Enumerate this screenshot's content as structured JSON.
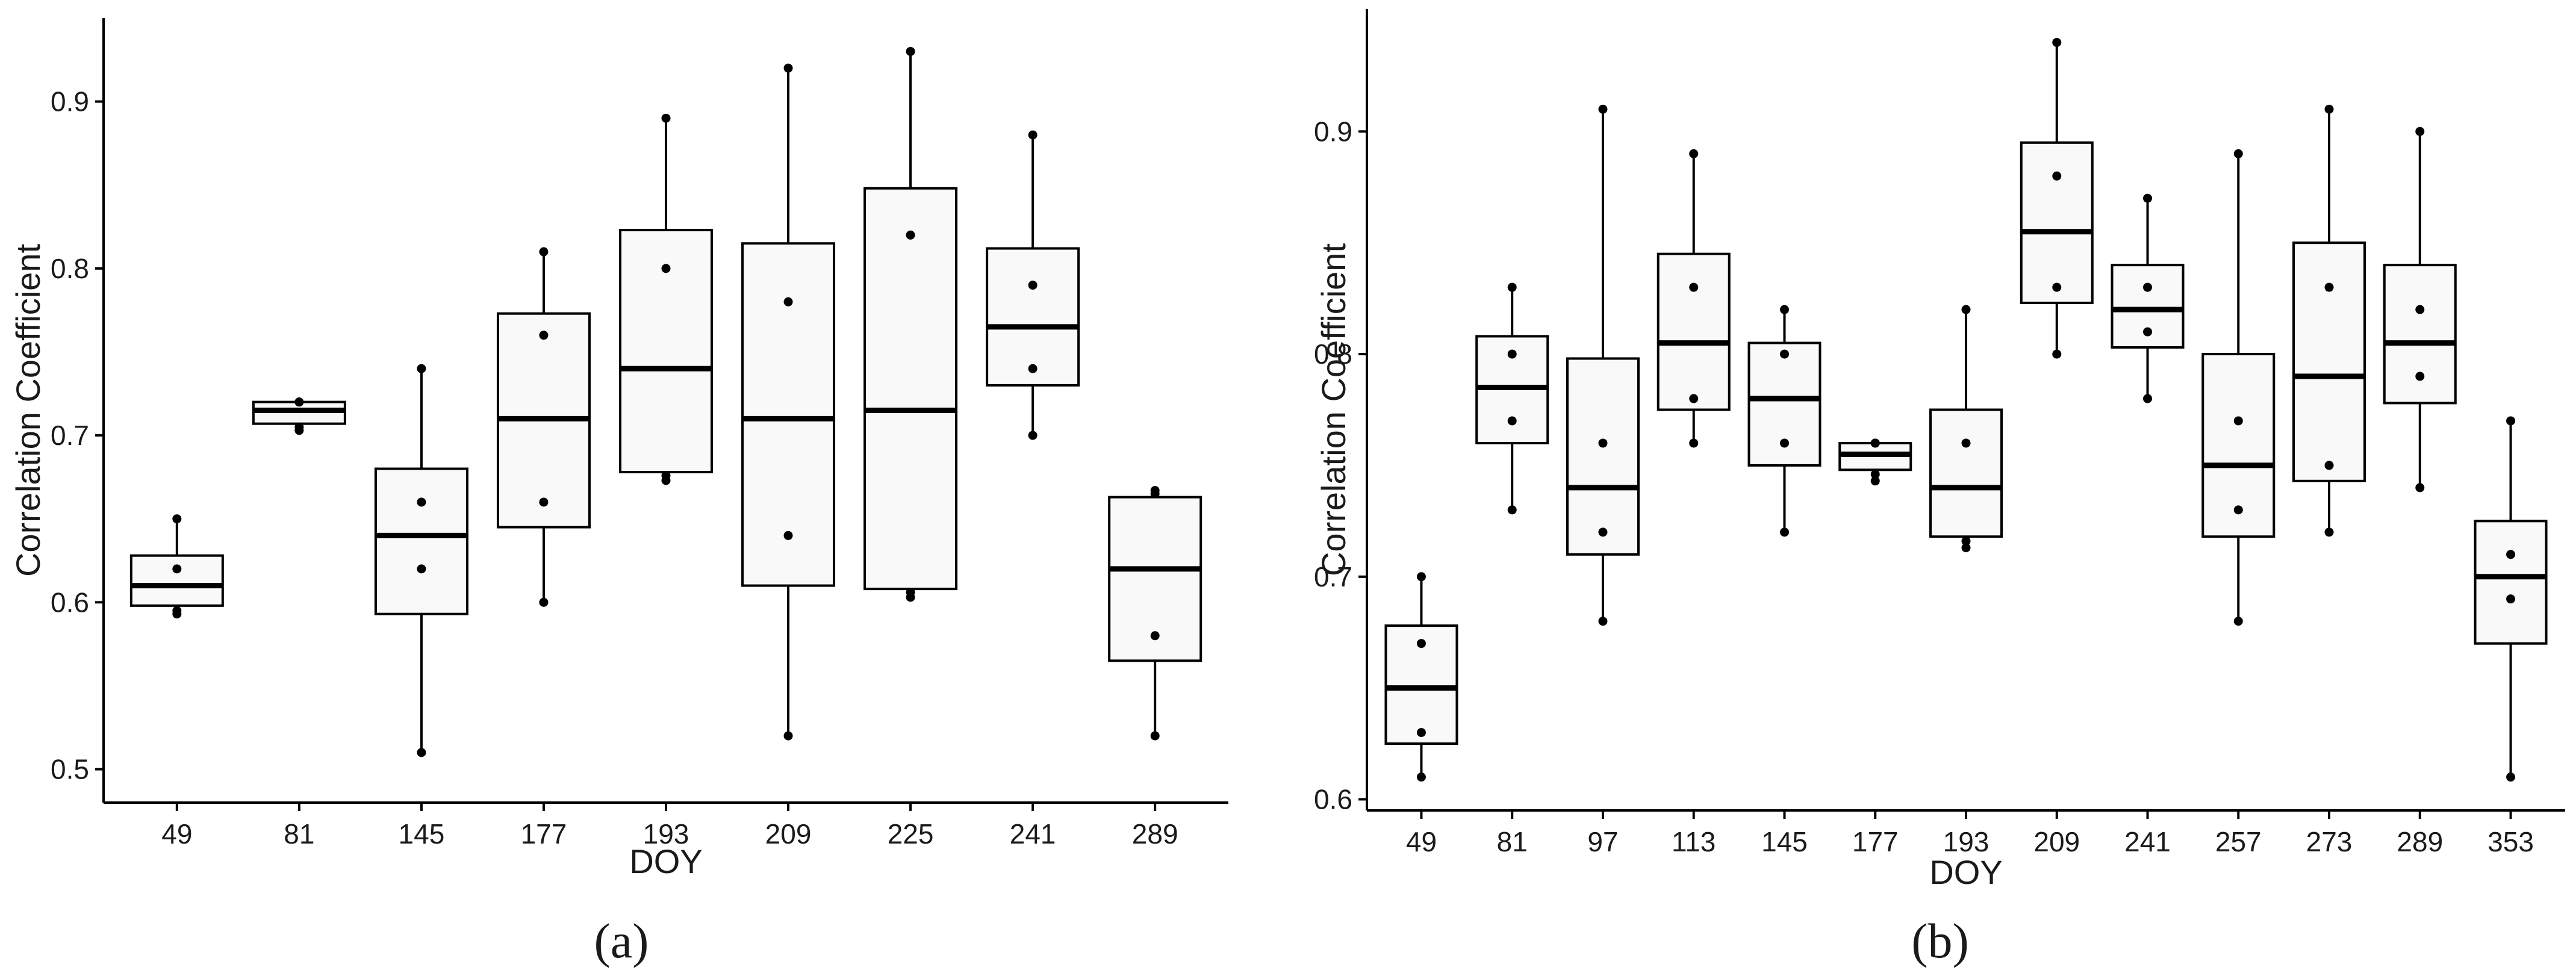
{
  "colors": {
    "box_fill": "#f9f9f9",
    "stroke": "#000000",
    "text": "#1a1a1a",
    "background": "#ffffff"
  },
  "chart_data": [
    {
      "type": "boxplot",
      "panel_label": "(a)",
      "xlabel": "DOY",
      "ylabel": "Correlation Coefficient",
      "ylim": [
        0.48,
        0.95
      ],
      "yticks": [
        0.5,
        0.6,
        0.7,
        0.8,
        0.9
      ],
      "ytick_labels": [
        "0.5",
        "0.6",
        "0.7",
        "0.8",
        "0.9"
      ],
      "grid": false,
      "categories": [
        "49",
        "81",
        "145",
        "177",
        "193",
        "209",
        "225",
        "241",
        "289"
      ],
      "boxes": [
        {
          "q1": 0.598,
          "median": 0.61,
          "q3": 0.628,
          "whisker_low": 0.593,
          "whisker_high": 0.65,
          "points": [
            0.593,
            0.595,
            0.62,
            0.65
          ]
        },
        {
          "q1": 0.707,
          "median": 0.715,
          "q3": 0.72,
          "whisker_low": 0.703,
          "whisker_high": 0.72,
          "points": [
            0.703,
            0.705,
            0.72,
            0.72
          ]
        },
        {
          "q1": 0.593,
          "median": 0.64,
          "q3": 0.68,
          "whisker_low": 0.51,
          "whisker_high": 0.74,
          "points": [
            0.51,
            0.62,
            0.66,
            0.74
          ]
        },
        {
          "q1": 0.645,
          "median": 0.71,
          "q3": 0.773,
          "whisker_low": 0.6,
          "whisker_high": 0.81,
          "points": [
            0.6,
            0.66,
            0.76,
            0.81
          ]
        },
        {
          "q1": 0.678,
          "median": 0.74,
          "q3": 0.823,
          "whisker_low": 0.673,
          "whisker_high": 0.89,
          "points": [
            0.673,
            0.676,
            0.8,
            0.89
          ]
        },
        {
          "q1": 0.61,
          "median": 0.71,
          "q3": 0.815,
          "whisker_low": 0.52,
          "whisker_high": 0.92,
          "points": [
            0.52,
            0.64,
            0.78,
            0.92
          ]
        },
        {
          "q1": 0.608,
          "median": 0.715,
          "q3": 0.848,
          "whisker_low": 0.603,
          "whisker_high": 0.93,
          "points": [
            0.603,
            0.606,
            0.82,
            0.93
          ]
        },
        {
          "q1": 0.73,
          "median": 0.765,
          "q3": 0.812,
          "whisker_low": 0.7,
          "whisker_high": 0.88,
          "points": [
            0.7,
            0.74,
            0.79,
            0.88
          ]
        },
        {
          "q1": 0.565,
          "median": 0.62,
          "q3": 0.663,
          "whisker_low": 0.52,
          "whisker_high": 0.667,
          "points": [
            0.52,
            0.58,
            0.665,
            0.667
          ]
        }
      ]
    },
    {
      "type": "boxplot",
      "panel_label": "(b)",
      "xlabel": "DOY",
      "ylabel": "Correlation Coefficient",
      "ylim": [
        0.595,
        0.955
      ],
      "yticks": [
        0.6,
        0.7,
        0.8,
        0.9
      ],
      "ytick_labels": [
        "0.6",
        "0.7",
        "0.8",
        "0.9"
      ],
      "grid": false,
      "categories": [
        "49",
        "81",
        "97",
        "113",
        "145",
        "177",
        "193",
        "209",
        "241",
        "257",
        "273",
        "289",
        "353"
      ],
      "boxes": [
        {
          "q1": 0.625,
          "median": 0.65,
          "q3": 0.678,
          "whisker_low": 0.61,
          "whisker_high": 0.7,
          "points": [
            0.61,
            0.63,
            0.67,
            0.7
          ]
        },
        {
          "q1": 0.76,
          "median": 0.785,
          "q3": 0.808,
          "whisker_low": 0.73,
          "whisker_high": 0.83,
          "points": [
            0.73,
            0.77,
            0.8,
            0.83
          ]
        },
        {
          "q1": 0.71,
          "median": 0.74,
          "q3": 0.798,
          "whisker_low": 0.68,
          "whisker_high": 0.91,
          "points": [
            0.68,
            0.72,
            0.76,
            0.91
          ]
        },
        {
          "q1": 0.775,
          "median": 0.805,
          "q3": 0.845,
          "whisker_low": 0.76,
          "whisker_high": 0.89,
          "points": [
            0.76,
            0.78,
            0.83,
            0.89
          ]
        },
        {
          "q1": 0.75,
          "median": 0.78,
          "q3": 0.805,
          "whisker_low": 0.72,
          "whisker_high": 0.82,
          "points": [
            0.72,
            0.76,
            0.8,
            0.82
          ]
        },
        {
          "q1": 0.748,
          "median": 0.755,
          "q3": 0.76,
          "whisker_low": 0.743,
          "whisker_high": 0.76,
          "points": [
            0.743,
            0.746,
            0.76,
            0.76
          ]
        },
        {
          "q1": 0.718,
          "median": 0.74,
          "q3": 0.775,
          "whisker_low": 0.713,
          "whisker_high": 0.82,
          "points": [
            0.713,
            0.716,
            0.76,
            0.82
          ]
        },
        {
          "q1": 0.823,
          "median": 0.855,
          "q3": 0.895,
          "whisker_low": 0.8,
          "whisker_high": 0.94,
          "points": [
            0.8,
            0.83,
            0.88,
            0.94
          ]
        },
        {
          "q1": 0.803,
          "median": 0.82,
          "q3": 0.84,
          "whisker_low": 0.78,
          "whisker_high": 0.87,
          "points": [
            0.78,
            0.81,
            0.83,
            0.87
          ]
        },
        {
          "q1": 0.718,
          "median": 0.75,
          "q3": 0.8,
          "whisker_low": 0.68,
          "whisker_high": 0.89,
          "points": [
            0.68,
            0.73,
            0.77,
            0.89
          ]
        },
        {
          "q1": 0.743,
          "median": 0.79,
          "q3": 0.85,
          "whisker_low": 0.72,
          "whisker_high": 0.91,
          "points": [
            0.72,
            0.75,
            0.83,
            0.91
          ]
        },
        {
          "q1": 0.778,
          "median": 0.805,
          "q3": 0.84,
          "whisker_low": 0.74,
          "whisker_high": 0.9,
          "points": [
            0.74,
            0.79,
            0.82,
            0.9
          ]
        },
        {
          "q1": 0.67,
          "median": 0.7,
          "q3": 0.725,
          "whisker_low": 0.61,
          "whisker_high": 0.77,
          "points": [
            0.61,
            0.69,
            0.71,
            0.77
          ]
        }
      ]
    }
  ]
}
